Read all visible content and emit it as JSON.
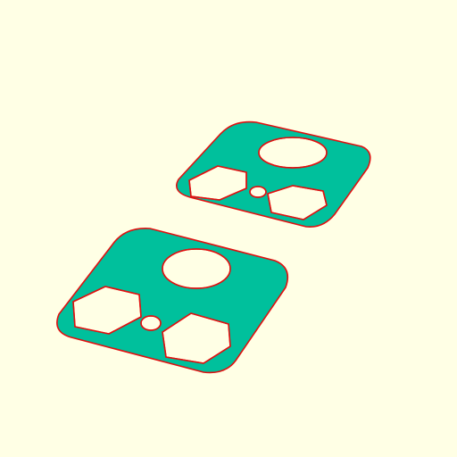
{
  "scene": {
    "background_color": "#ffffe5",
    "fill_color": "#00c09c",
    "outline_color": "#e01010",
    "objects": [
      {
        "name": "plate-back",
        "holes": [
          "circle-hole",
          "hexagon-hole-left",
          "small-circle-hole",
          "hexagon-hole-right"
        ]
      },
      {
        "name": "plate-front",
        "holes": [
          "circle-hole",
          "hexagon-hole-left",
          "small-circle-hole",
          "hexagon-hole-right"
        ]
      }
    ]
  }
}
